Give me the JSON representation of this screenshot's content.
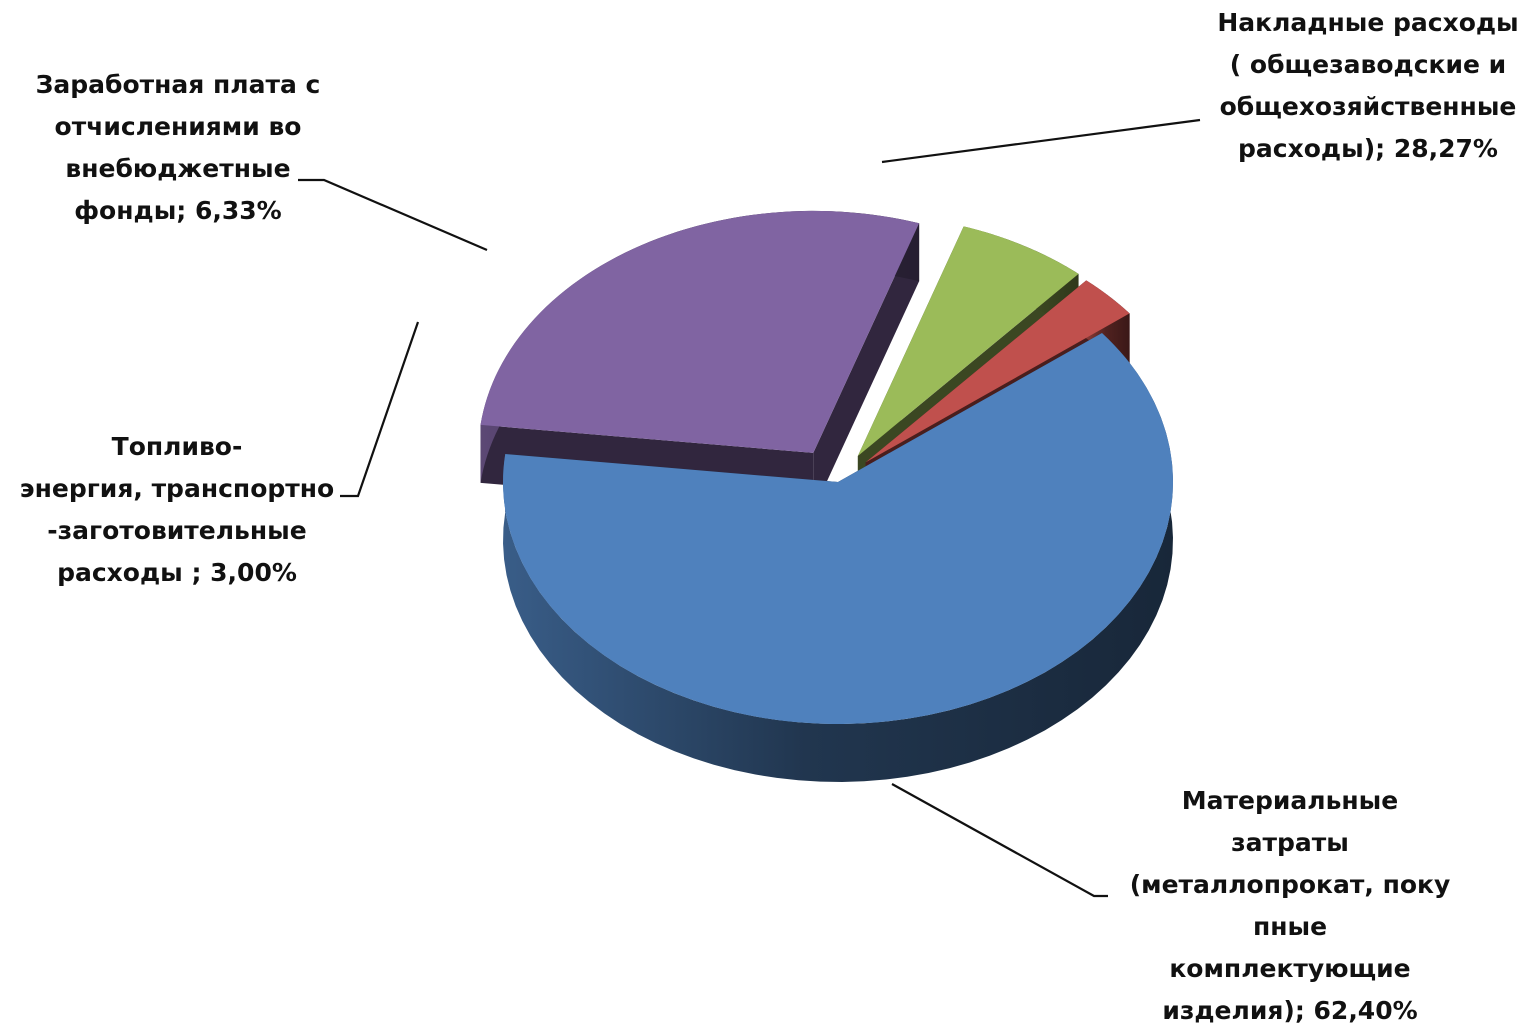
{
  "chart_data": {
    "type": "pie",
    "style": "3d-exploded",
    "categories": [
      "Материальные затраты (металлопрокат, покупные комплектующие изделия)",
      "Накладные расходы (общезаводские и общехозяйственные расходы)",
      "Заработная плата с отчислениями во внебюджетные фонды",
      "Топливо-энергия, транспортно-заготовительные расходы"
    ],
    "values": [
      62.4,
      28.27,
      6.33,
      3.0
    ],
    "unit": "%",
    "slices": [
      {
        "key": "material",
        "value": 62.4,
        "color": "#4F81BD",
        "label_lines": [
          "Материальные",
          "затраты",
          "(металлопрокат, поку",
          "пные",
          "комплектующие",
          "изделия); 62,40%"
        ]
      },
      {
        "key": "overhead",
        "value": 28.27,
        "color": "#8064A2",
        "label_lines": [
          "Накладные  расходы",
          "( общезаводские и",
          "общехозяйственные",
          "расходы); 28,27%"
        ]
      },
      {
        "key": "salary",
        "value": 6.33,
        "color": "#9BBB59",
        "label_lines": [
          "Заработная плата  с",
          "отчислениями во",
          "внебюджетные",
          "фонды; 6,33%"
        ]
      },
      {
        "key": "fuel",
        "value": 3.0,
        "color": "#C0504D",
        "label_lines": [
          "Топливо-",
          "энергия, транспортно",
          "-заготовительные",
          "расходы ; 3,00%"
        ]
      }
    ],
    "legend": "none",
    "data_labels": "outside-with-leader-lines"
  }
}
